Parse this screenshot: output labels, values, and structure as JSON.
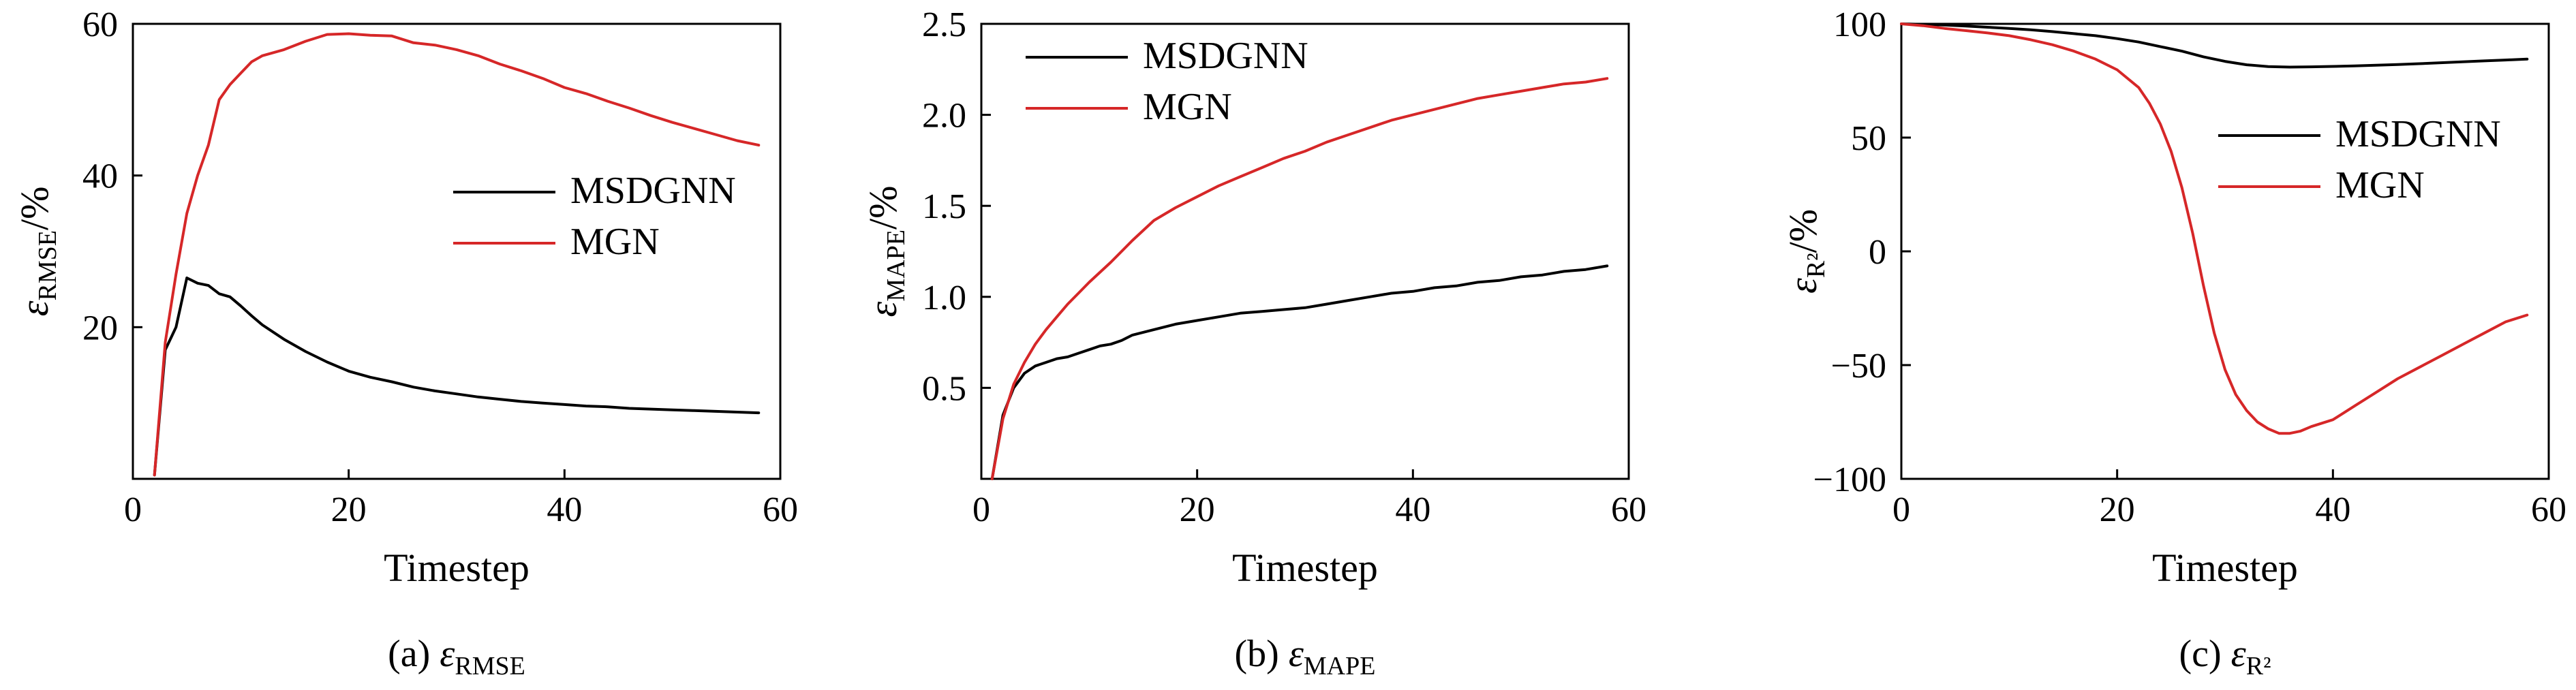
{
  "colors": {
    "MSDGNN": "#000000",
    "MGN": "#d62728"
  },
  "chart_data": [
    {
      "type": "line",
      "caption": {
        "prefix": "(a) ",
        "symbol": "ε",
        "sub": "RMSE"
      },
      "ylabel": {
        "symbol": "ε",
        "sub": "RMSE",
        "unit": "/%"
      },
      "xlabel": "Timestep",
      "xlim": [
        0,
        60
      ],
      "ylim": [
        0,
        60
      ],
      "xticks": [
        "0",
        "20",
        "40",
        "60"
      ],
      "yticks": [
        "20",
        "40",
        "60"
      ],
      "legend": {
        "placement": "center-right"
      },
      "series": [
        {
          "name": "MSDGNN",
          "x": [
            2,
            3,
            4,
            5,
            6,
            7,
            8,
            9,
            10,
            11,
            12,
            14,
            16,
            18,
            20,
            22,
            24,
            26,
            28,
            30,
            32,
            34,
            36,
            38,
            40,
            42,
            44,
            46,
            48,
            50,
            52,
            54,
            56,
            58
          ],
          "y": [
            0.5,
            17,
            20,
            26.5,
            25.8,
            25.5,
            24.4,
            24.0,
            22.8,
            21.5,
            20.3,
            18.4,
            16.8,
            15.4,
            14.2,
            13.4,
            12.8,
            12.1,
            11.6,
            11.2,
            10.8,
            10.5,
            10.2,
            10.0,
            9.8,
            9.6,
            9.5,
            9.3,
            9.2,
            9.1,
            9.0,
            8.9,
            8.8,
            8.7
          ]
        },
        {
          "name": "MGN",
          "x": [
            2,
            3,
            4,
            5,
            6,
            7,
            8,
            9,
            10,
            11,
            12,
            14,
            16,
            18,
            20,
            22,
            24,
            26,
            28,
            30,
            32,
            34,
            36,
            38,
            40,
            42,
            44,
            46,
            48,
            50,
            52,
            54,
            56,
            58
          ],
          "y": [
            0.5,
            18,
            27,
            35,
            40,
            44,
            50,
            52,
            53.5,
            55,
            55.8,
            56.6,
            57.7,
            58.6,
            58.7,
            58.5,
            58.4,
            57.5,
            57.2,
            56.6,
            55.8,
            54.7,
            53.8,
            52.8,
            51.6,
            50.8,
            49.8,
            48.9,
            47.9,
            47.0,
            46.2,
            45.4,
            44.6,
            44.0
          ]
        }
      ]
    },
    {
      "type": "line",
      "caption": {
        "prefix": "(b) ",
        "symbol": "ε",
        "sub": "MAPE"
      },
      "ylabel": {
        "symbol": "ε",
        "sub": "MAPE",
        "unit": "/%"
      },
      "xlabel": "Timestep",
      "xlim": [
        0,
        60
      ],
      "ylim": [
        0,
        2.5
      ],
      "xticks": [
        "0",
        "20",
        "40",
        "60"
      ],
      "yticks": [
        "0.5",
        "1.0",
        "1.5",
        "2.0",
        "2.5"
      ],
      "legend": {
        "placement": "top-left"
      },
      "series": [
        {
          "name": "MSDGNN",
          "x": [
            1,
            2,
            3,
            4,
            5,
            6,
            7,
            8,
            9,
            10,
            11,
            12,
            13,
            14,
            16,
            18,
            20,
            22,
            24,
            26,
            28,
            30,
            32,
            34,
            36,
            38,
            40,
            42,
            44,
            46,
            48,
            50,
            52,
            54,
            56,
            58
          ],
          "y": [
            0.0,
            0.35,
            0.5,
            0.58,
            0.62,
            0.64,
            0.66,
            0.67,
            0.69,
            0.71,
            0.73,
            0.74,
            0.76,
            0.79,
            0.82,
            0.85,
            0.87,
            0.89,
            0.91,
            0.92,
            0.93,
            0.94,
            0.96,
            0.98,
            1.0,
            1.02,
            1.03,
            1.05,
            1.06,
            1.08,
            1.09,
            1.11,
            1.12,
            1.14,
            1.15,
            1.17
          ]
        },
        {
          "name": "MGN",
          "x": [
            1,
            2,
            3,
            4,
            5,
            6,
            7,
            8,
            9,
            10,
            12,
            14,
            16,
            18,
            20,
            22,
            24,
            26,
            28,
            30,
            32,
            34,
            36,
            38,
            40,
            42,
            44,
            46,
            48,
            50,
            52,
            54,
            56,
            58
          ],
          "y": [
            0.0,
            0.33,
            0.52,
            0.64,
            0.74,
            0.82,
            0.89,
            0.96,
            1.02,
            1.08,
            1.19,
            1.31,
            1.42,
            1.49,
            1.55,
            1.61,
            1.66,
            1.71,
            1.76,
            1.8,
            1.85,
            1.89,
            1.93,
            1.97,
            2.0,
            2.03,
            2.06,
            2.09,
            2.11,
            2.13,
            2.15,
            2.17,
            2.18,
            2.2
          ]
        }
      ]
    },
    {
      "type": "line",
      "caption": {
        "prefix": "(c) ",
        "symbol": "ε",
        "sub": "R²"
      },
      "ylabel": {
        "symbol": "ε",
        "sub": "R²",
        "unit": "/%"
      },
      "xlabel": "Timestep",
      "xlim": [
        0,
        60
      ],
      "ylim": [
        -100,
        100
      ],
      "xticks": [
        "0",
        "20",
        "40",
        "60"
      ],
      "yticks": [
        "100",
        "50",
        "0",
        "−50",
        "−100"
      ],
      "legend": {
        "placement": "center-right"
      },
      "series": [
        {
          "name": "MSDGNN",
          "x": [
            0,
            2,
            4,
            6,
            8,
            10,
            12,
            14,
            16,
            18,
            20,
            22,
            24,
            26,
            28,
            30,
            32,
            34,
            36,
            38,
            40,
            42,
            44,
            46,
            48,
            50,
            52,
            54,
            56,
            58
          ],
          "y": [
            100,
            99.8,
            99.5,
            99,
            98.5,
            98,
            97.4,
            96.6,
            95.7,
            94.8,
            93.5,
            92,
            90,
            88,
            85.5,
            83.5,
            82,
            81.2,
            81,
            81.1,
            81.3,
            81.5,
            81.8,
            82.1,
            82.5,
            82.9,
            83.3,
            83.7,
            84.1,
            84.5
          ]
        },
        {
          "name": "MGN",
          "x": [
            0,
            2,
            4,
            6,
            8,
            10,
            12,
            14,
            16,
            18,
            20,
            22,
            23,
            24,
            25,
            26,
            27,
            28,
            29,
            30,
            31,
            32,
            33,
            34,
            35,
            36,
            37,
            38,
            40,
            42,
            44,
            46,
            48,
            50,
            52,
            54,
            56,
            58
          ],
          "y": [
            100,
            99.2,
            98,
            97,
            96,
            94.8,
            93,
            90.8,
            88,
            84.5,
            79.8,
            72,
            65,
            56,
            44,
            28,
            8,
            -15,
            -36,
            -52,
            -63,
            -70,
            -75,
            -78,
            -80,
            -80,
            -79,
            -77,
            -74,
            -68,
            -62,
            -56,
            -51,
            -46,
            -41,
            -36,
            -31,
            -28
          ]
        }
      ]
    }
  ]
}
